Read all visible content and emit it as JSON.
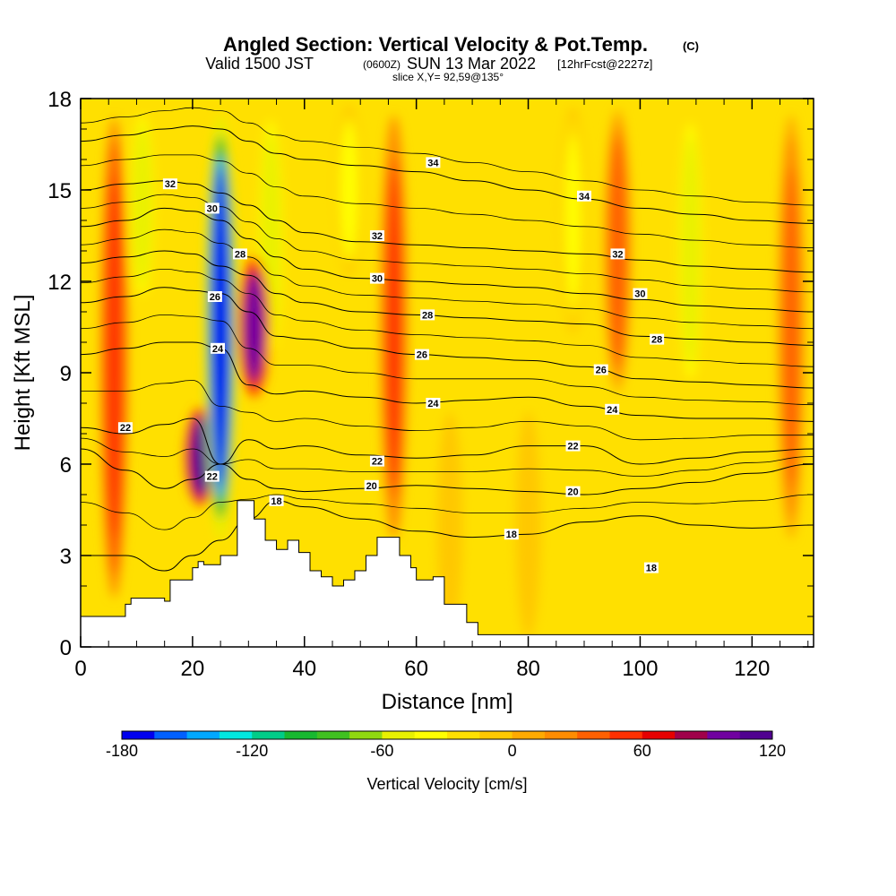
{
  "chart_data": {
    "type": "heatmap",
    "title": "Angled Section: Vertical Velocity & Pot.Temp.",
    "title_unit": "(C)",
    "subtitle_a": "Valid 1500 JST",
    "subtitle_b": "(0600Z)",
    "subtitle_c": "SUN 13 Mar 2022",
    "subtitle_d": "[12hrFcst@2227z]",
    "slice_label": "slice X,Y= 92,59@135°",
    "xlabel": "Distance [nm]",
    "ylabel": "Height [Kft MSL]",
    "xlim": [
      0,
      131
    ],
    "ylim": [
      0,
      18
    ],
    "x_ticks": [
      0,
      20,
      40,
      60,
      80,
      100,
      120
    ],
    "y_ticks": [
      0,
      3,
      6,
      9,
      12,
      15,
      18
    ],
    "colorbar": {
      "label": "Vertical Velocity [cm/s]",
      "ticks": [
        -180,
        -120,
        -60,
        0,
        60,
        120
      ],
      "levels": [
        -180,
        -165,
        -150,
        -135,
        -120,
        -105,
        -90,
        -75,
        -60,
        -45,
        -30,
        -15,
        0,
        15,
        30,
        45,
        60,
        75,
        90,
        105,
        120,
        135,
        150
      ],
      "colors": [
        "#0000ee",
        "#0060ff",
        "#00a8ff",
        "#00e8e0",
        "#00cc88",
        "#18b830",
        "#40c020",
        "#90d810",
        "#e8f000",
        "#ffff00",
        "#ffe000",
        "#ffc800",
        "#ffaa00",
        "#ff8c00",
        "#ff6000",
        "#ff3000",
        "#e60000",
        "#a0004a",
        "#7000a0",
        "#500090"
      ]
    },
    "velocity_features": [
      {
        "kind": "downdraft",
        "x": 25,
        "y_bottom": 3,
        "y_top": 18,
        "peak": -170
      },
      {
        "kind": "downdraft",
        "x": 34,
        "y_bottom": 9,
        "y_top": 18,
        "peak": -60
      },
      {
        "kind": "downdraft",
        "x": 11,
        "y_bottom": 11,
        "y_top": 18,
        "peak": -55
      },
      {
        "kind": "downdraft",
        "x": 48,
        "y_bottom": 12,
        "y_top": 18,
        "peak": -40
      },
      {
        "kind": "downdraft",
        "x": 109,
        "y_bottom": 8,
        "y_top": 18,
        "peak": -60
      },
      {
        "kind": "downdraft",
        "x": 88,
        "y_bottom": 10,
        "y_top": 18,
        "peak": -35
      },
      {
        "kind": "updraft",
        "x": 21.5,
        "y_bottom": 4.5,
        "y_top": 8,
        "peak": 115
      },
      {
        "kind": "updraft",
        "x": 31,
        "y_bottom": 8,
        "y_top": 13,
        "peak": 95
      },
      {
        "kind": "updraft",
        "x": 6,
        "y_bottom": 1,
        "y_top": 18,
        "peak": 50
      },
      {
        "kind": "updraft",
        "x": 56,
        "y_bottom": 3,
        "y_top": 18,
        "peak": 45
      },
      {
        "kind": "updraft",
        "x": 96,
        "y_bottom": 8,
        "y_top": 18,
        "peak": 40
      },
      {
        "kind": "updraft",
        "x": 127,
        "y_bottom": 3,
        "y_top": 18,
        "peak": 35
      },
      {
        "kind": "weak",
        "x": 66,
        "y_bottom": 0,
        "y_top": 8,
        "peak": -10
      },
      {
        "kind": "weak",
        "x": 80,
        "y_bottom": 0,
        "y_top": 8,
        "peak": -10
      }
    ],
    "terrain": {
      "x": [
        0,
        5,
        8,
        9,
        15,
        16,
        20,
        21,
        22,
        25,
        28,
        29,
        31,
        33,
        35,
        37,
        39,
        41,
        43,
        45,
        47,
        49,
        51,
        53,
        55,
        57,
        59,
        60,
        63,
        65,
        69,
        71,
        131
      ],
      "height": [
        1,
        1,
        1.4,
        1.6,
        1.5,
        2.2,
        2.6,
        2.8,
        2.7,
        3,
        4.8,
        4.8,
        4.2,
        3.5,
        3.2,
        3.5,
        3.1,
        2.5,
        2.3,
        2,
        2.2,
        2.5,
        3,
        3.6,
        3.6,
        3,
        2.6,
        2.2,
        2.3,
        1.4,
        0.8,
        0.4,
        0.4
      ]
    },
    "isentropes": {
      "levels": [
        18,
        20,
        22,
        24,
        26,
        28,
        30,
        32,
        34
      ],
      "x": [
        0,
        8,
        15,
        20,
        25,
        30,
        35,
        40,
        50,
        60,
        70,
        80,
        90,
        100,
        110,
        120,
        131
      ],
      "heights": [
        [
          3,
          3,
          2.5,
          3,
          3.5,
          4.2,
          4.8,
          4.6,
          4.2,
          3.8,
          3.6,
          3.7,
          4.1,
          4.3,
          4,
          3.9,
          4
        ],
        [
          6.5,
          5.8,
          5.2,
          5.5,
          6,
          5.5,
          5.2,
          5.1,
          5.2,
          5.3,
          5.2,
          5.1,
          5,
          5.2,
          5.4,
          5.7,
          6
        ],
        [
          7.2,
          7,
          7.3,
          7.5,
          6,
          6.8,
          6.5,
          6.6,
          6.3,
          6.2,
          6.3,
          6.6,
          6.6,
          6,
          6.2,
          6.4,
          6.5
        ],
        [
          9.6,
          9.8,
          10,
          10,
          9.8,
          8.6,
          8.3,
          8.4,
          8.2,
          8,
          8.1,
          8.2,
          7.9,
          7.6,
          7.5,
          7.5,
          7.4
        ],
        [
          11.3,
          11.5,
          11.8,
          11.7,
          11.6,
          11,
          10.2,
          10.1,
          9.8,
          9.6,
          9.5,
          9.4,
          9.2,
          8.8,
          8.7,
          8.6,
          8.5
        ],
        [
          12.6,
          12.8,
          13,
          12.9,
          12.5,
          12.2,
          11.6,
          11.3,
          11,
          10.9,
          10.8,
          10.7,
          10.6,
          10.2,
          10.1,
          10,
          9.9
        ],
        [
          13.8,
          14,
          14.4,
          14.3,
          14,
          13.4,
          12.8,
          12.4,
          12.1,
          12,
          11.9,
          11.8,
          11.6,
          11.4,
          11.2,
          11.1,
          11
        ],
        [
          15,
          15.2,
          15.3,
          15.2,
          14.9,
          14.5,
          14,
          13.6,
          13.3,
          13.2,
          13.1,
          13,
          12.9,
          12.7,
          12.5,
          12.4,
          12.3
        ],
        [
          16.6,
          16.8,
          17,
          17.1,
          17,
          16.6,
          16.2,
          16,
          15.8,
          15.6,
          15.3,
          15,
          14.7,
          14.4,
          14.2,
          14,
          13.9
        ]
      ],
      "extra_levels": [
        19,
        21,
        23,
        25,
        27,
        29,
        31,
        33,
        35
      ]
    },
    "isentrope_labels": [
      {
        "text": "18",
        "x": 35,
        "y": 4.8
      },
      {
        "text": "18",
        "x": 77,
        "y": 3.7
      },
      {
        "text": "18",
        "x": 102,
        "y": 2.6
      },
      {
        "text": "20",
        "x": 52,
        "y": 5.3
      },
      {
        "text": "20",
        "x": 88,
        "y": 5.1
      },
      {
        "text": "22",
        "x": 8,
        "y": 7.2
      },
      {
        "text": "22",
        "x": 23.5,
        "y": 5.6
      },
      {
        "text": "22",
        "x": 53,
        "y": 6.1
      },
      {
        "text": "22",
        "x": 88,
        "y": 6.6
      },
      {
        "text": "24",
        "x": 24.5,
        "y": 9.8
      },
      {
        "text": "24",
        "x": 63,
        "y": 8
      },
      {
        "text": "24",
        "x": 95,
        "y": 7.8
      },
      {
        "text": "26",
        "x": 24,
        "y": 11.5
      },
      {
        "text": "26",
        "x": 61,
        "y": 9.6
      },
      {
        "text": "26",
        "x": 93,
        "y": 9.1
      },
      {
        "text": "28",
        "x": 28.5,
        "y": 12.9
      },
      {
        "text": "28",
        "x": 62,
        "y": 10.9
      },
      {
        "text": "28",
        "x": 103,
        "y": 10.1
      },
      {
        "text": "30",
        "x": 23.5,
        "y": 14.4
      },
      {
        "text": "30",
        "x": 53,
        "y": 12.1
      },
      {
        "text": "30",
        "x": 100,
        "y": 11.6
      },
      {
        "text": "32",
        "x": 16,
        "y": 15.2
      },
      {
        "text": "32",
        "x": 53,
        "y": 13.5
      },
      {
        "text": "32",
        "x": 96,
        "y": 12.9
      },
      {
        "text": "34",
        "x": 63,
        "y": 15.9
      },
      {
        "text": "34",
        "x": 90,
        "y": 14.8
      }
    ]
  }
}
